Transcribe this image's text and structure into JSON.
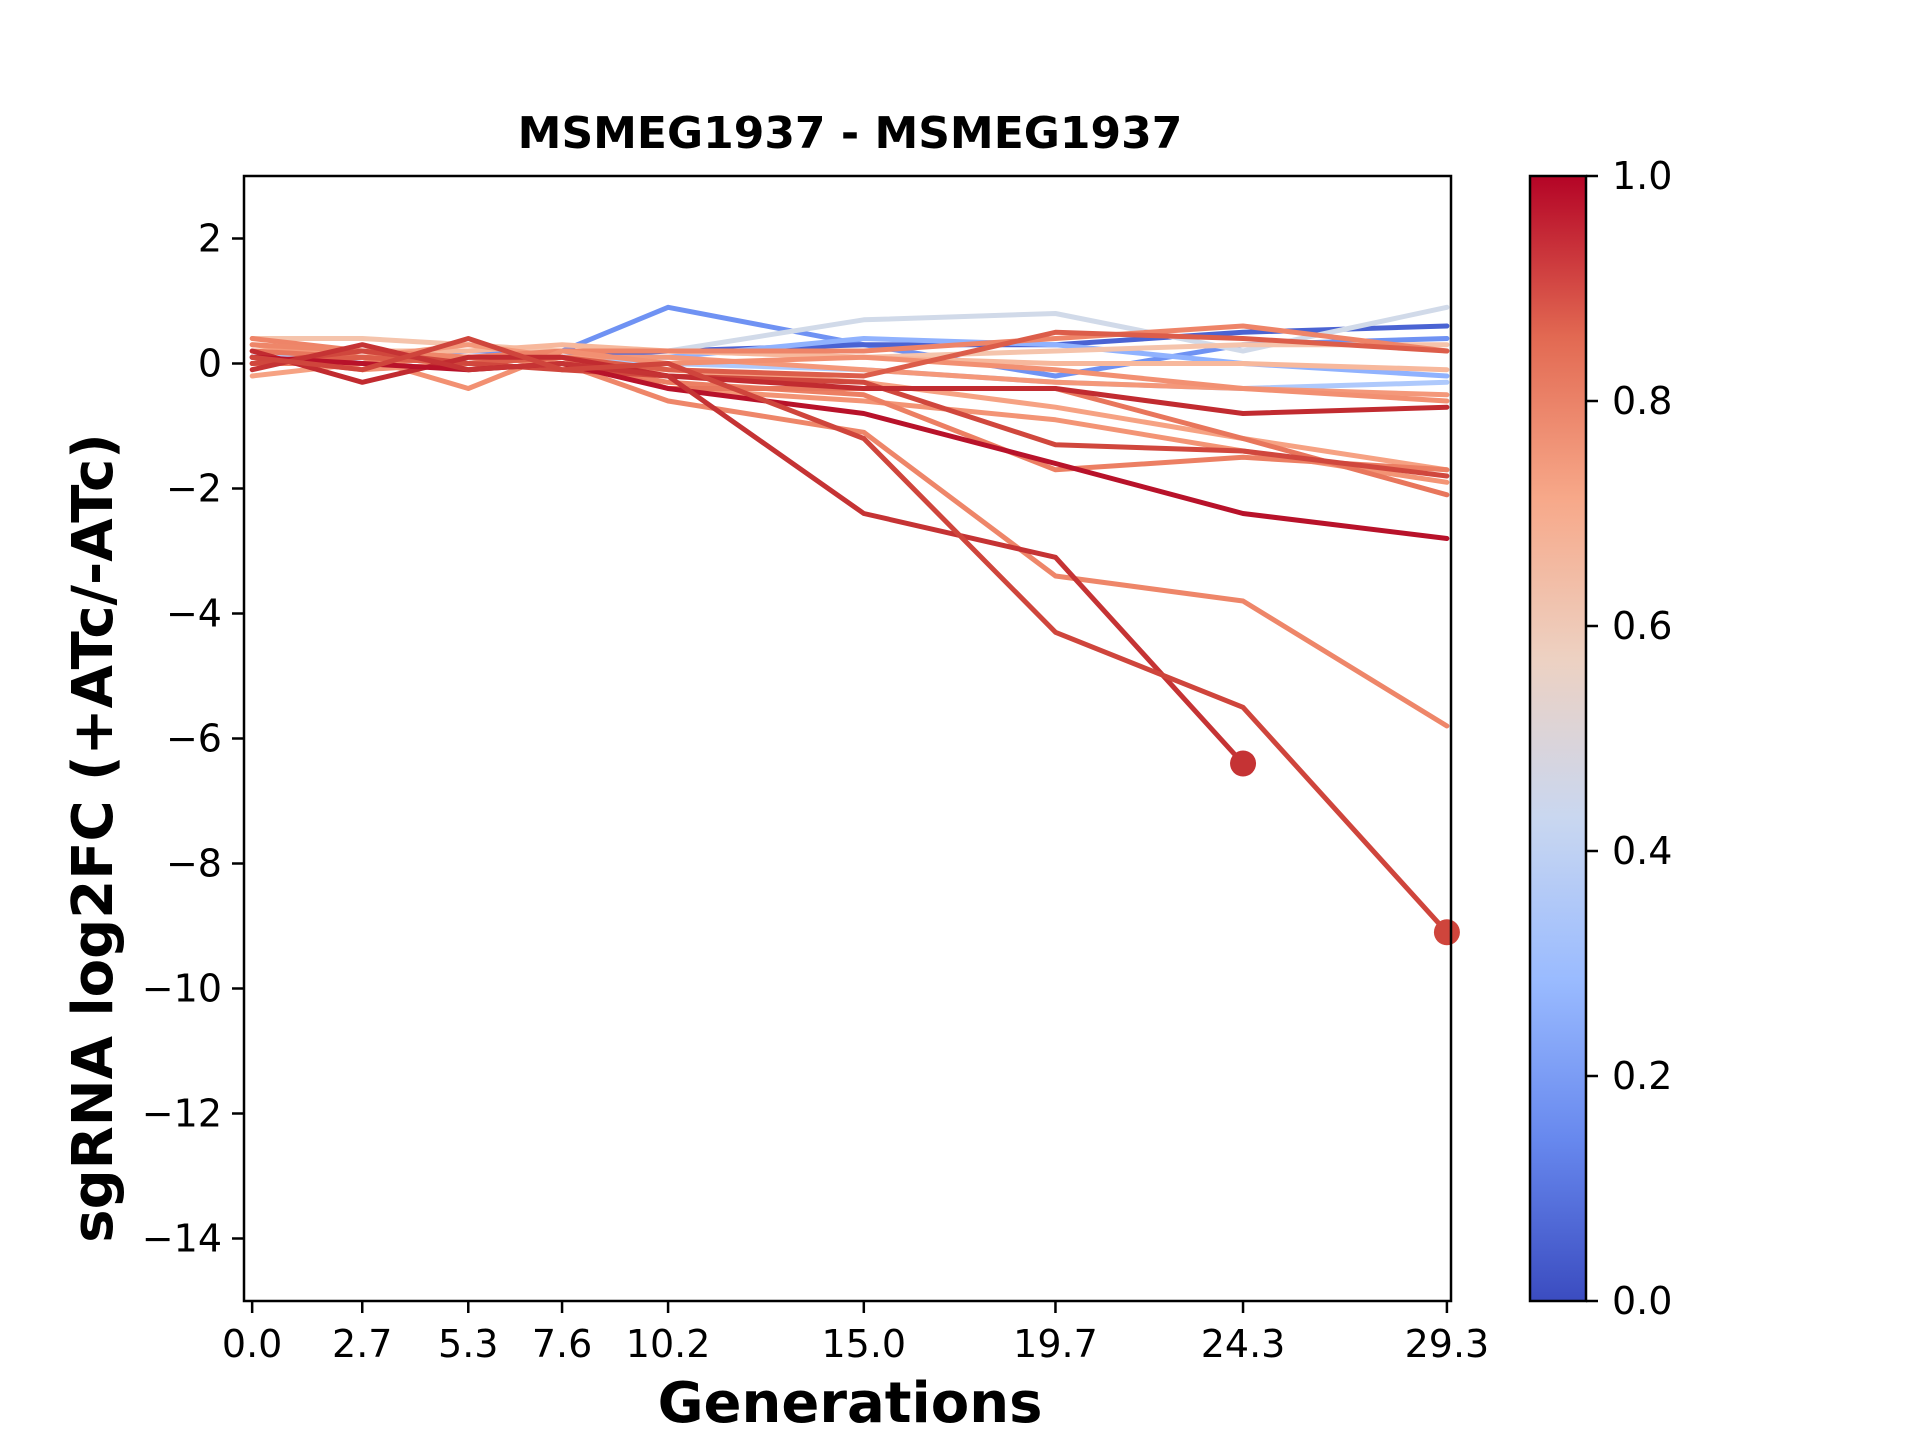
{
  "chart_data": {
    "type": "line",
    "title": "MSMEG1937 - MSMEG1937",
    "xlabel": "Generations",
    "ylabel": "sgRNA log2FC (+ATc/-ATc)",
    "x": [
      0.0,
      2.7,
      5.3,
      7.6,
      10.2,
      15.0,
      19.7,
      24.3,
      29.3
    ],
    "xticklabels": [
      "0.0",
      "2.7",
      "5.3",
      "7.6",
      "10.2",
      "15.0",
      "19.7",
      "24.3",
      "29.3"
    ],
    "xlim": [
      -0.2,
      29.4
    ],
    "ylim": [
      -15,
      3
    ],
    "yticks": [
      2,
      0,
      -2,
      -4,
      -6,
      -8,
      -10,
      -12,
      -14
    ],
    "yticklabels": [
      "2",
      "0",
      "−2",
      "−4",
      "−6",
      "−8",
      "−10",
      "−12",
      "−14"
    ],
    "grid": false,
    "colorbar": {
      "colormap": "coolwarm",
      "range": [
        0.0,
        1.0
      ],
      "ticks": [
        0.0,
        0.2,
        0.4,
        0.6,
        0.8,
        1.0
      ],
      "ticklabels": [
        "0.0",
        "0.2",
        "0.4",
        "0.6",
        "0.8",
        "1.0"
      ],
      "stops": [
        "#3b4cc0",
        "#6788ee",
        "#9abbff",
        "#c9d7f0",
        "#edd1c2",
        "#f7a889",
        "#e26952",
        "#b40426"
      ]
    },
    "series": [
      {
        "color": "#6f92f3",
        "values": [
          0.0,
          0.1,
          0.2,
          0.2,
          0.9,
          0.3,
          -0.2,
          0.3,
          0.4
        ]
      },
      {
        "color": "#4a63d3",
        "values": [
          0.1,
          0.0,
          0.1,
          0.1,
          0.2,
          0.3,
          0.3,
          0.5,
          0.6
        ]
      },
      {
        "color": "#d1dae9",
        "values": [
          0.0,
          0.1,
          0.0,
          0.2,
          0.2,
          0.7,
          0.8,
          0.2,
          0.9
        ]
      },
      {
        "color": "#90b2fe",
        "values": [
          0.0,
          0.0,
          0.1,
          0.1,
          0.1,
          0.4,
          0.3,
          0.0,
          -0.2
        ]
      },
      {
        "color": "#aec9fc",
        "values": [
          0.1,
          0.1,
          0.0,
          0.1,
          0.0,
          -0.1,
          -0.3,
          -0.4,
          -0.3
        ]
      },
      {
        "color": "#f5c4ac",
        "values": [
          0.4,
          0.4,
          0.3,
          0.2,
          0.2,
          0.1,
          0.2,
          0.3,
          0.3
        ]
      },
      {
        "color": "#f7b89c",
        "values": [
          0.2,
          0.2,
          0.2,
          0.3,
          0.2,
          0.1,
          0.0,
          0.0,
          -0.1
        ]
      },
      {
        "color": "#f4987a",
        "values": [
          0.3,
          0.1,
          0.3,
          0.1,
          0.1,
          -0.1,
          -0.3,
          -0.4,
          -0.5
        ]
      },
      {
        "color": "#ee8468",
        "values": [
          0.4,
          0.2,
          0.1,
          0.2,
          0.2,
          0.2,
          0.4,
          0.6,
          0.2
        ]
      },
      {
        "color": "#f29072",
        "values": [
          0.0,
          0.1,
          -0.4,
          0.2,
          0.0,
          0.1,
          -0.1,
          -0.4,
          -0.6
        ]
      },
      {
        "color": "#f6a283",
        "values": [
          -0.2,
          0.0,
          0.1,
          0.0,
          -0.1,
          -0.3,
          -0.7,
          -1.2,
          -1.7
        ]
      },
      {
        "color": "#f39475",
        "values": [
          0.1,
          -0.1,
          0.0,
          0.1,
          -0.4,
          -0.6,
          -0.9,
          -1.4,
          -1.9
        ]
      },
      {
        "color": "#ec7f63",
        "values": [
          0.0,
          0.0,
          0.1,
          0.0,
          -0.3,
          -0.5,
          -1.7,
          -1.5,
          -1.7
        ]
      },
      {
        "color": "#e8765c",
        "values": [
          0.2,
          0.1,
          0.0,
          0.1,
          -0.4,
          -0.4,
          -0.4,
          -1.2,
          -2.1
        ]
      },
      {
        "color": "#ee8669",
        "values": [
          0.3,
          0.2,
          0.1,
          0.0,
          -0.6,
          -1.1,
          -3.4,
          -3.8,
          -5.8
        ]
      },
      {
        "color": "#dc5d4a",
        "values": [
          0.0,
          0.1,
          0.0,
          0.1,
          -0.1,
          -0.2,
          0.5,
          0.4,
          0.2
        ]
      },
      {
        "color": "#d0473d",
        "values": [
          0.0,
          0.2,
          0.0,
          -0.1,
          -0.2,
          -0.3,
          -1.3,
          -1.4,
          -1.8
        ]
      },
      {
        "color": "#c12b30",
        "values": [
          0.2,
          -0.3,
          0.1,
          0.1,
          -0.2,
          -0.4,
          -0.4,
          -0.8,
          -0.7
        ]
      },
      {
        "color": "#b8122a",
        "values": [
          0.1,
          0.0,
          -0.1,
          0.0,
          -0.4,
          -0.8,
          -1.6,
          -2.4,
          -2.8
        ]
      },
      {
        "color": "#c53334",
        "values": [
          -0.1,
          0.3,
          -0.1,
          0.0,
          -0.2,
          -2.4,
          -3.1,
          -6.4,
          null
        ]
      },
      {
        "color": "#cf453c",
        "values": [
          0.1,
          -0.1,
          0.4,
          -0.1,
          0.0,
          -1.2,
          -4.3,
          -5.5,
          -9.1
        ]
      }
    ],
    "endpoints": [
      {
        "x": 24.3,
        "y": -6.4,
        "color": "#c53334"
      },
      {
        "x": 29.3,
        "y": -9.1,
        "color": "#cf453c"
      }
    ]
  }
}
